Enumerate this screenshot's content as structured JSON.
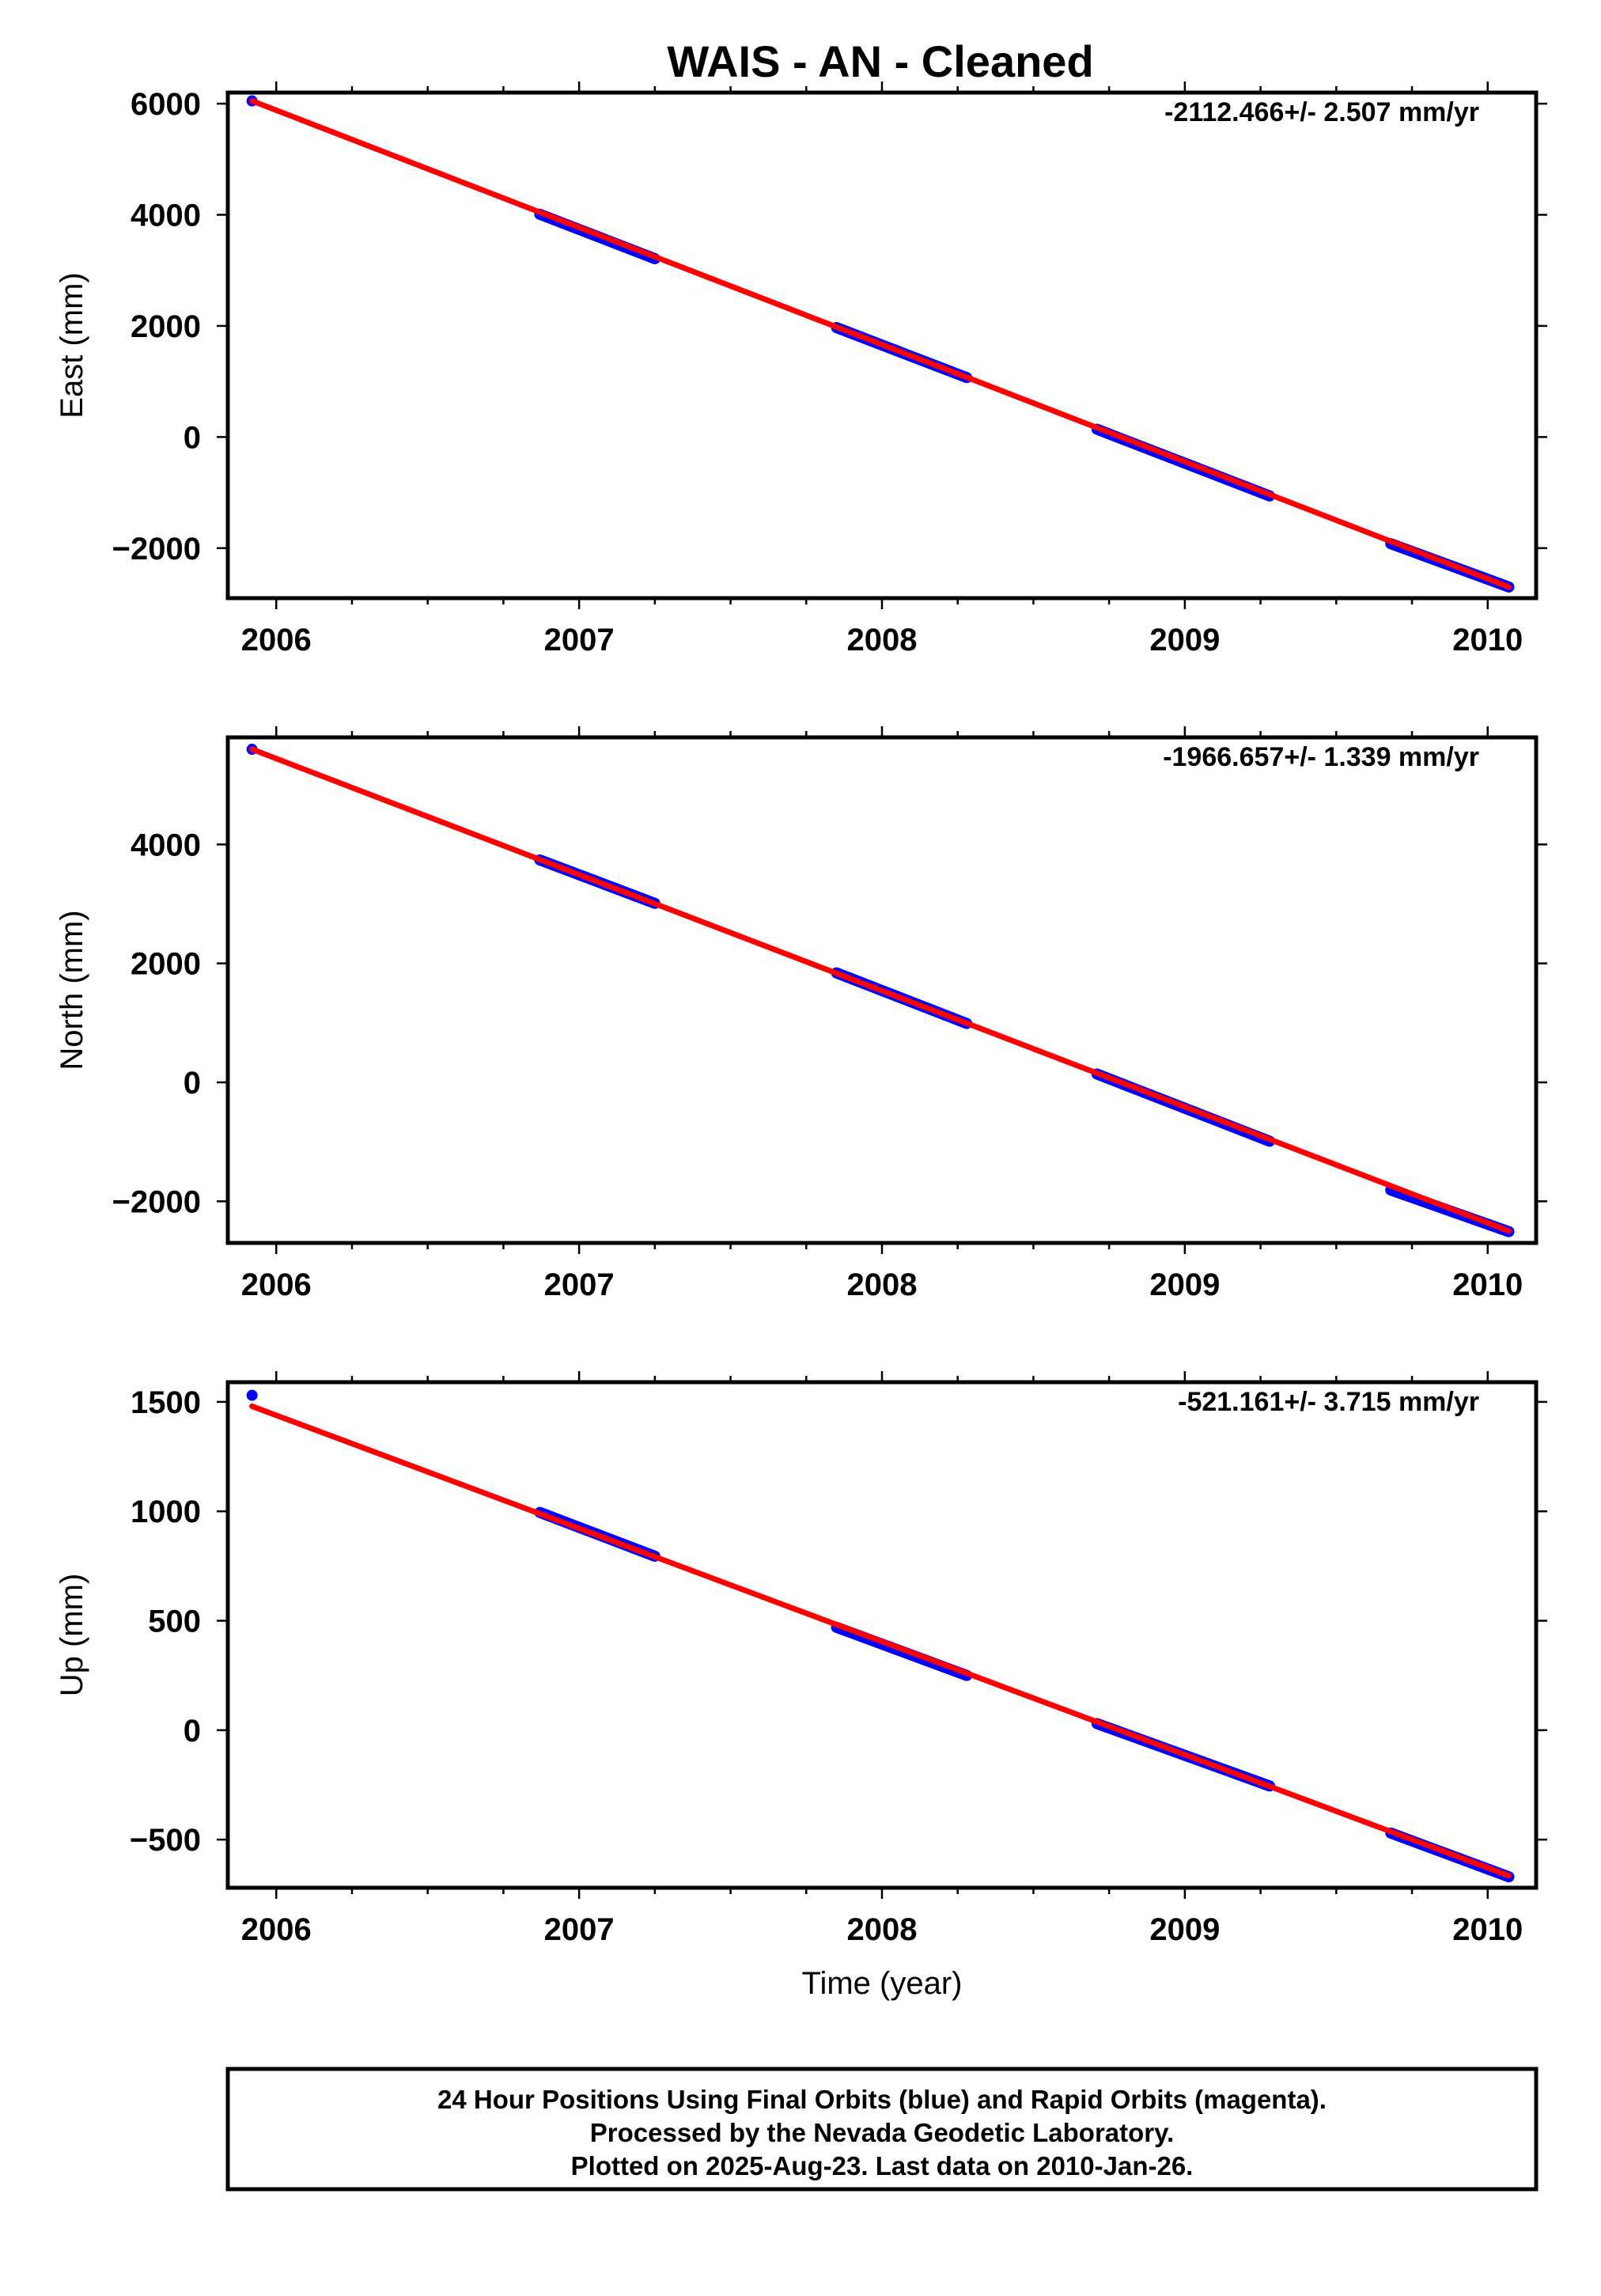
{
  "page": {
    "title": "WAIS  - AN - Cleaned"
  },
  "footer": {
    "lines": [
      "24 Hour Positions Using Final Orbits (blue) and Rapid Orbits (magenta).",
      "Processed by the Nevada Geodetic Laboratory.",
      "Plotted on 2025-Aug-23. Last data on 2010-Jan-26."
    ]
  },
  "colors": {
    "data_points": "#0000ff",
    "fit_line": "#ff0000",
    "frame": "#000000"
  },
  "chart_data": [
    {
      "type": "scatter",
      "title": "WAIS  - AN - Cleaned",
      "ylabel": "East (mm)",
      "xlabel": "",
      "rate_label": "-2112.466+/- 2.507 mm/yr",
      "xlim": [
        2005.84,
        2010.16
      ],
      "ylim": [
        -2900,
        6200
      ],
      "x_ticks": [
        2006,
        2007,
        2008,
        2009,
        2010
      ],
      "x_tick_labels": [
        "2006",
        "2007",
        "2008",
        "2009",
        "2010"
      ],
      "y_ticks": [
        -2000,
        0,
        2000,
        4000,
        6000
      ],
      "y_tick_labels": [
        "−2000",
        "0",
        "2000",
        "4000",
        "6000"
      ],
      "grid": false,
      "fit": {
        "name": "linear fit",
        "x": [
          2005.92,
          2010.07
        ],
        "y": [
          6050,
          -2700
        ]
      },
      "series": [
        {
          "name": "data",
          "segments": [
            {
              "x": [
                2005.92,
                2005.92
              ],
              "y": [
                6050,
                6050
              ]
            },
            {
              "x": [
                2006.87,
                2007.25
              ],
              "y": [
                4010,
                3210
              ]
            },
            {
              "x": [
                2007.85,
                2008.28
              ],
              "y": [
                1970,
                1070
              ]
            },
            {
              "x": [
                2008.71,
                2009.28
              ],
              "y": [
                140,
                -1060
              ]
            },
            {
              "x": [
                2009.68,
                2010.07
              ],
              "y": [
                -1920,
                -2700
              ]
            }
          ]
        }
      ]
    },
    {
      "type": "scatter",
      "ylabel": "North (mm)",
      "xlabel": "",
      "rate_label": "-1966.657+/- 1.339 mm/yr",
      "xlim": [
        2005.84,
        2010.16
      ],
      "ylim": [
        -2700,
        5800
      ],
      "x_ticks": [
        2006,
        2007,
        2008,
        2009,
        2010
      ],
      "x_tick_labels": [
        "2006",
        "2007",
        "2008",
        "2009",
        "2010"
      ],
      "y_ticks": [
        -2000,
        0,
        2000,
        4000
      ],
      "y_tick_labels": [
        "−2000",
        "0",
        "2000",
        "4000"
      ],
      "grid": false,
      "fit": {
        "name": "linear fit",
        "x": [
          2005.92,
          2010.07
        ],
        "y": [
          5600,
          -2500
        ]
      },
      "series": [
        {
          "name": "data",
          "segments": [
            {
              "x": [
                2005.92,
                2005.92
              ],
              "y": [
                5600,
                5600
              ]
            },
            {
              "x": [
                2006.87,
                2007.25
              ],
              "y": [
                3740,
                3010
              ]
            },
            {
              "x": [
                2007.85,
                2008.28
              ],
              "y": [
                1840,
                990
              ]
            },
            {
              "x": [
                2008.71,
                2009.28
              ],
              "y": [
                140,
                -990
              ]
            },
            {
              "x": [
                2009.68,
                2010.07
              ],
              "y": [
                -1810,
                -2510
              ]
            }
          ]
        }
      ]
    },
    {
      "type": "scatter",
      "ylabel": "Up (mm)",
      "xlabel": "Time (year)",
      "rate_label": "-521.161+/- 3.715 mm/yr",
      "xlim": [
        2005.84,
        2010.16
      ],
      "ylim": [
        -720,
        1590
      ],
      "x_ticks": [
        2006,
        2007,
        2008,
        2009,
        2010
      ],
      "x_tick_labels": [
        "2006",
        "2007",
        "2008",
        "2009",
        "2010"
      ],
      "y_ticks": [
        -500,
        0,
        500,
        1000,
        1500
      ],
      "y_tick_labels": [
        "−500",
        "0",
        "500",
        "1000",
        "1500"
      ],
      "grid": false,
      "fit": {
        "name": "linear fit",
        "x": [
          2005.92,
          2010.07
        ],
        "y": [
          1480,
          -665
        ]
      },
      "series": [
        {
          "name": "data",
          "segments": [
            {
              "x": [
                2005.92,
                2005.92
              ],
              "y": [
                1530,
                1530
              ]
            },
            {
              "x": [
                2006.87,
                2007.25
              ],
              "y": [
                995,
                795
              ]
            },
            {
              "x": [
                2007.85,
                2008.28
              ],
              "y": [
                470,
                250
              ]
            },
            {
              "x": [
                2008.71,
                2009.28
              ],
              "y": [
                30,
                -255
              ]
            },
            {
              "x": [
                2009.68,
                2010.07
              ],
              "y": [
                -470,
                -670
              ]
            }
          ]
        }
      ]
    }
  ]
}
